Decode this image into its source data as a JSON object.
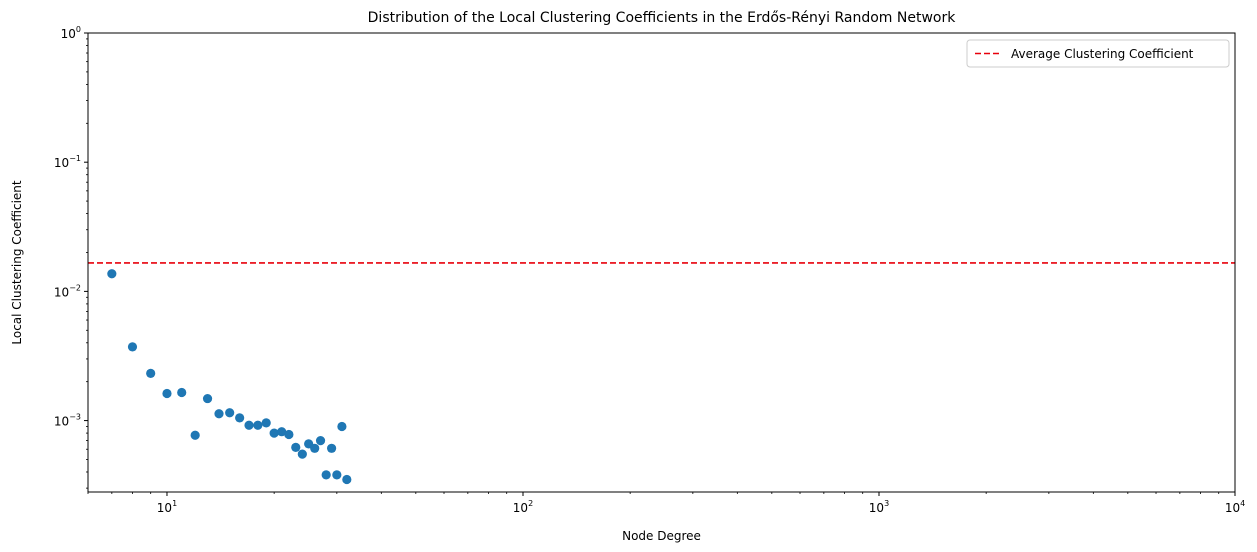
{
  "chart_data": {
    "type": "scatter",
    "title": "Distribution of the Local Clustering Coefficients in the Erdős-Rényi Random Network",
    "xlabel": "Node Degree",
    "ylabel": "Local Clustering Coefficient",
    "xscale": "log",
    "yscale": "log",
    "xlim": [
      6,
      10000
    ],
    "ylim": [
      0.00028,
      1
    ],
    "x_ticks": [
      {
        "value": 10,
        "base": "10",
        "exp": "1"
      },
      {
        "value": 100,
        "base": "10",
        "exp": "2"
      },
      {
        "value": 1000,
        "base": "10",
        "exp": "3"
      },
      {
        "value": 10000,
        "base": "10",
        "exp": "4"
      }
    ],
    "y_ticks": [
      {
        "value": 0.001,
        "base": "10",
        "exp": "−3"
      },
      {
        "value": 0.01,
        "base": "10",
        "exp": "−2"
      },
      {
        "value": 0.1,
        "base": "10",
        "exp": "−1"
      },
      {
        "value": 1,
        "base": "10",
        "exp": "0"
      }
    ],
    "grid": false,
    "legend": {
      "placement": "top-right",
      "entries": [
        "Average Clustering Coefficient"
      ]
    },
    "average_line": {
      "y": 0.0166,
      "color": "#e8000b",
      "style": "dashed"
    },
    "marker_color": "#1f77b4",
    "points": [
      {
        "x": 7,
        "y": 0.0137
      },
      {
        "x": 8,
        "y": 0.00372
      },
      {
        "x": 9,
        "y": 0.00232
      },
      {
        "x": 10,
        "y": 0.00162
      },
      {
        "x": 11,
        "y": 0.00165
      },
      {
        "x": 12,
        "y": 0.00077
      },
      {
        "x": 13,
        "y": 0.00148
      },
      {
        "x": 14,
        "y": 0.00113
      },
      {
        "x": 15,
        "y": 0.00115
      },
      {
        "x": 16,
        "y": 0.00105
      },
      {
        "x": 17,
        "y": 0.00092
      },
      {
        "x": 18,
        "y": 0.00092
      },
      {
        "x": 19,
        "y": 0.00096
      },
      {
        "x": 20,
        "y": 0.0008
      },
      {
        "x": 21,
        "y": 0.00082
      },
      {
        "x": 22,
        "y": 0.00078
      },
      {
        "x": 23,
        "y": 0.00062
      },
      {
        "x": 24,
        "y": 0.00055
      },
      {
        "x": 25,
        "y": 0.00066
      },
      {
        "x": 26,
        "y": 0.00061
      },
      {
        "x": 27,
        "y": 0.0007
      },
      {
        "x": 28,
        "y": 0.00038
      },
      {
        "x": 29,
        "y": 0.00061
      },
      {
        "x": 30,
        "y": 0.00038
      },
      {
        "x": 31,
        "y": 0.0009
      },
      {
        "x": 32,
        "y": 0.00035
      }
    ]
  }
}
